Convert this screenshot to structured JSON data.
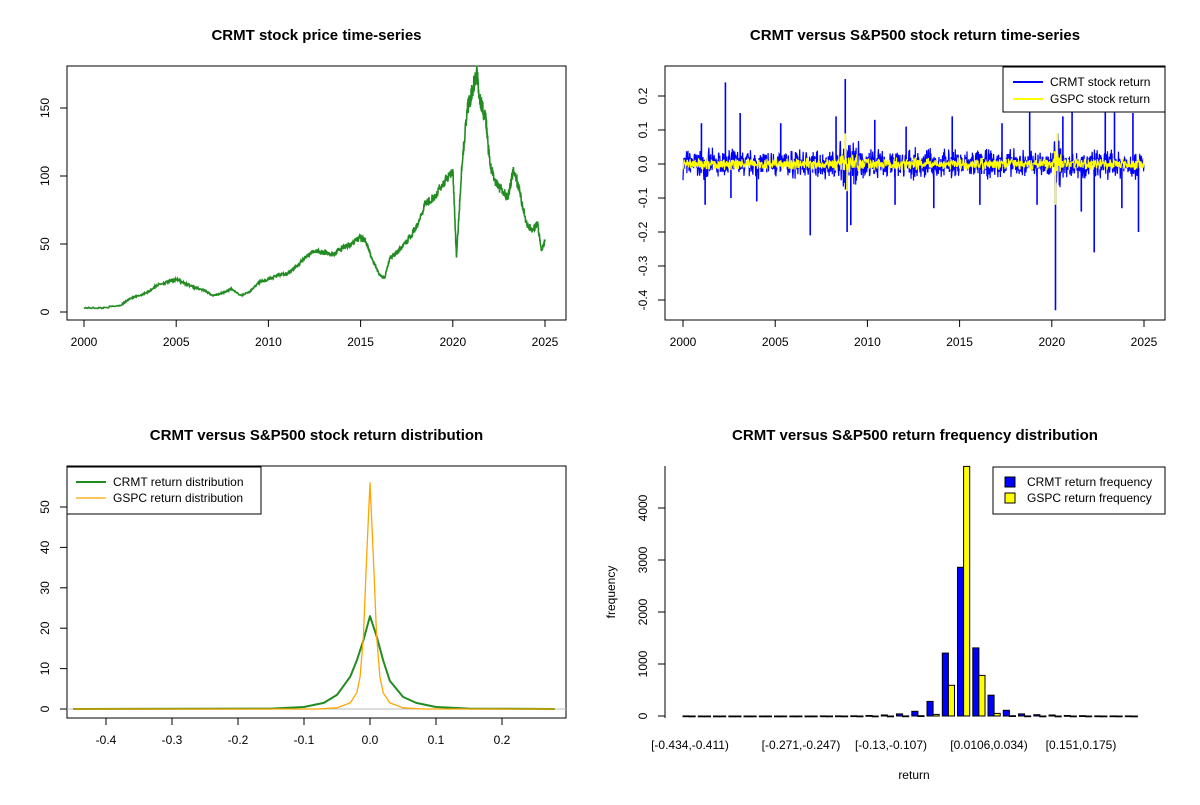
{
  "chart_data": [
    {
      "type": "line",
      "title": "CRMT stock price time-series",
      "xlabel": "",
      "ylabel": "",
      "xlim": [
        2000,
        2025
      ],
      "ylim": [
        0,
        175
      ],
      "x_ticks": [
        "2000",
        "2005",
        "2010",
        "2015",
        "2020",
        "2025"
      ],
      "y_ticks": [
        "0",
        "50",
        "100",
        "150"
      ],
      "series": [
        {
          "color": "#228B22",
          "x": [
            2000.0,
            2001.0,
            2002.0,
            2002.5,
            2003.0,
            2003.5,
            2004.0,
            2004.5,
            2005.0,
            2005.5,
            2006.0,
            2006.5,
            2007.0,
            2007.5,
            2008.0,
            2008.5,
            2009.0,
            2009.5,
            2010.0,
            2010.5,
            2011.0,
            2011.5,
            2012.0,
            2012.5,
            2013.0,
            2013.5,
            2014.0,
            2014.5,
            2015.0,
            2015.3,
            2015.6,
            2016.0,
            2016.3,
            2016.6,
            2017.0,
            2017.5,
            2018.0,
            2018.5,
            2019.0,
            2019.5,
            2020.0,
            2020.2,
            2020.5,
            2020.8,
            2021.0,
            2021.3,
            2021.5,
            2021.8,
            2022.0,
            2022.3,
            2022.6,
            2023.0,
            2023.3,
            2023.6,
            2024.0,
            2024.3,
            2024.6,
            2024.8,
            2025.0
          ],
          "y": [
            3,
            3,
            5,
            10,
            12,
            15,
            20,
            22,
            24,
            21,
            18,
            16,
            12,
            14,
            17,
            12,
            15,
            22,
            24,
            27,
            28,
            33,
            40,
            45,
            44,
            42,
            47,
            50,
            55,
            52,
            40,
            28,
            25,
            40,
            44,
            52,
            62,
            80,
            85,
            95,
            105,
            40,
            110,
            150,
            160,
            175,
            155,
            140,
            110,
            95,
            90,
            85,
            105,
            90,
            65,
            60,
            65,
            45,
            52
          ]
        }
      ]
    },
    {
      "type": "line",
      "title": "CRMT versus S&P500 stock return time-series",
      "xlabel": "",
      "ylabel": "",
      "xlim": [
        2000,
        2025
      ],
      "ylim": [
        -0.45,
        0.25
      ],
      "x_ticks": [
        "2000",
        "2005",
        "2010",
        "2015",
        "2020",
        "2025"
      ],
      "y_ticks": [
        "-0.4",
        "-0.3",
        "-0.2",
        "-0.1",
        "0.0",
        "0.1",
        "0.2"
      ],
      "legend_position": "top-right",
      "series": [
        {
          "name": "CRMT stock return",
          "color": "#0000FF",
          "band_low": -0.05,
          "band_high": 0.05,
          "spikes": [
            [
              2001.0,
              0.12
            ],
            [
              2001.2,
              -0.12
            ],
            [
              2002.3,
              0.24
            ],
            [
              2002.6,
              -0.1
            ],
            [
              2003.1,
              0.15
            ],
            [
              2004.0,
              -0.11
            ],
            [
              2005.3,
              0.12
            ],
            [
              2006.9,
              -0.21
            ],
            [
              2008.3,
              0.14
            ],
            [
              2008.8,
              0.25
            ],
            [
              2008.9,
              -0.2
            ],
            [
              2009.1,
              -0.18
            ],
            [
              2010.4,
              0.13
            ],
            [
              2011.5,
              -0.12
            ],
            [
              2012.1,
              0.11
            ],
            [
              2013.6,
              -0.13
            ],
            [
              2014.6,
              0.14
            ],
            [
              2016.1,
              -0.12
            ],
            [
              2017.3,
              0.12
            ],
            [
              2018.8,
              0.16
            ],
            [
              2019.2,
              -0.12
            ],
            [
              2020.2,
              -0.43
            ],
            [
              2020.6,
              0.14
            ],
            [
              2021.1,
              0.17
            ],
            [
              2021.6,
              -0.14
            ],
            [
              2022.3,
              -0.26
            ],
            [
              2022.9,
              0.18
            ],
            [
              2023.4,
              0.16
            ],
            [
              2023.8,
              -0.13
            ],
            [
              2024.4,
              0.15
            ],
            [
              2024.7,
              -0.2
            ]
          ]
        },
        {
          "name": "GSPC stock return",
          "color": "#FFFF00",
          "band_low": -0.02,
          "band_high": 0.02,
          "spikes": [
            [
              2008.8,
              0.09
            ],
            [
              2008.9,
              -0.08
            ],
            [
              2020.2,
              -0.12
            ],
            [
              2020.3,
              0.09
            ]
          ]
        }
      ]
    },
    {
      "type": "line",
      "title": "CRMT versus S&P500 stock return distribution",
      "xlabel": "",
      "ylabel": "",
      "xlim": [
        -0.45,
        0.28
      ],
      "ylim": [
        0,
        57
      ],
      "x_ticks": [
        "-0.4",
        "-0.3",
        "-0.2",
        "-0.1",
        "0.0",
        "0.1",
        "0.2"
      ],
      "y_ticks": [
        "0",
        "10",
        "20",
        "30",
        "40",
        "50"
      ],
      "legend_position": "top-left",
      "series": [
        {
          "name": "CRMT return distribution",
          "color": "#228B22",
          "x": [
            -0.45,
            -0.15,
            -0.1,
            -0.07,
            -0.05,
            -0.03,
            -0.02,
            -0.01,
            0.0,
            0.01,
            0.02,
            0.03,
            0.05,
            0.07,
            0.1,
            0.15,
            0.28
          ],
          "y": [
            0,
            0.1,
            0.5,
            1.5,
            3.5,
            8,
            12,
            17,
            23,
            18,
            12,
            7,
            3,
            1.5,
            0.5,
            0.1,
            0
          ]
        },
        {
          "name": "GSPC return distribution",
          "color": "#FFA500",
          "x": [
            -0.45,
            -0.08,
            -0.05,
            -0.03,
            -0.02,
            -0.015,
            -0.01,
            -0.005,
            0.0,
            0.005,
            0.01,
            0.015,
            0.02,
            0.03,
            0.05,
            0.08,
            0.28
          ],
          "y": [
            0,
            0,
            0.3,
            1.5,
            4,
            8,
            18,
            38,
            56,
            38,
            18,
            8,
            4,
            1.5,
            0.3,
            0,
            0
          ]
        }
      ]
    },
    {
      "type": "bar",
      "title": "CRMT versus S&P500 return frequency distribution",
      "xlabel": "return",
      "ylabel": "frequency",
      "ylim": [
        0,
        4800
      ],
      "y_ticks": [
        "0",
        "1000",
        "2000",
        "3000",
        "4000"
      ],
      "x_tick_labels": [
        "[-0.434,-0.411)",
        "[-0.271,-0.247)",
        "[-0.13,-0.107)",
        "[0.0106,0.034)",
        "[0.151,0.175)"
      ],
      "legend_position": "top-right",
      "bins": 30,
      "series": [
        {
          "name": "CRMT return frequency",
          "color": "#0000FF",
          "values": [
            1,
            0,
            0,
            0,
            0,
            0,
            0,
            0,
            0,
            1,
            2,
            4,
            10,
            20,
            40,
            90,
            280,
            1210,
            2860,
            1310,
            400,
            110,
            40,
            25,
            20,
            10,
            5,
            2,
            1,
            1
          ]
        },
        {
          "name": "GSPC return frequency",
          "color": "#FFFF00",
          "values": [
            0,
            0,
            0,
            0,
            0,
            0,
            0,
            0,
            0,
            0,
            0,
            0,
            0,
            0,
            1,
            5,
            30,
            590,
            4800,
            780,
            50,
            5,
            1,
            0,
            0,
            0,
            0,
            0,
            0,
            0
          ]
        }
      ]
    }
  ]
}
